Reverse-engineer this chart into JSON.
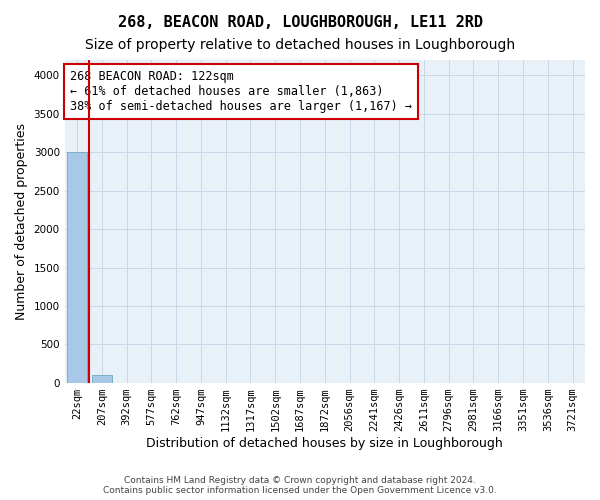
{
  "title": "268, BEACON ROAD, LOUGHBOROUGH, LE11 2RD",
  "subtitle": "Size of property relative to detached houses in Loughborough",
  "xlabel": "Distribution of detached houses by size in Loughborough",
  "ylabel": "Number of detached properties",
  "footer_line1": "Contains HM Land Registry data © Crown copyright and database right 2024.",
  "footer_line2": "Contains public sector information licensed under the Open Government Licence v3.0.",
  "bin_labels": [
    "22sqm",
    "207sqm",
    "392sqm",
    "577sqm",
    "762sqm",
    "947sqm",
    "1132sqm",
    "1317sqm",
    "1502sqm",
    "1687sqm",
    "1872sqm",
    "2056sqm",
    "2241sqm",
    "2426sqm",
    "2611sqm",
    "2796sqm",
    "2981sqm",
    "3166sqm",
    "3351sqm",
    "3536sqm",
    "3721sqm"
  ],
  "bar_heights": [
    3000,
    100,
    0,
    0,
    0,
    0,
    0,
    0,
    0,
    0,
    0,
    0,
    0,
    0,
    0,
    0,
    0,
    0,
    0,
    0,
    0
  ],
  "bar_color": "#a8c8e8",
  "bar_edge_color": "#7aafc8",
  "annotation_line1": "268 BEACON ROAD: 122sqm",
  "annotation_line2": "← 61% of detached houses are smaller (1,863)",
  "annotation_line3": "38% of semi-detached houses are larger (1,167) →",
  "annotation_box_color": "#ffffff",
  "annotation_box_edge": "#cc0000",
  "vline_x": 0.5,
  "vline_color": "#cc0000",
  "ylim": [
    0,
    4200
  ],
  "yticks": [
    0,
    500,
    1000,
    1500,
    2000,
    2500,
    3000,
    3500,
    4000
  ],
  "grid_color": "#c8d8e8",
  "bg_color": "#e8f0f8",
  "title_fontsize": 11,
  "subtitle_fontsize": 10,
  "axis_label_fontsize": 9,
  "tick_fontsize": 7.5,
  "annotation_fontsize": 8.5
}
